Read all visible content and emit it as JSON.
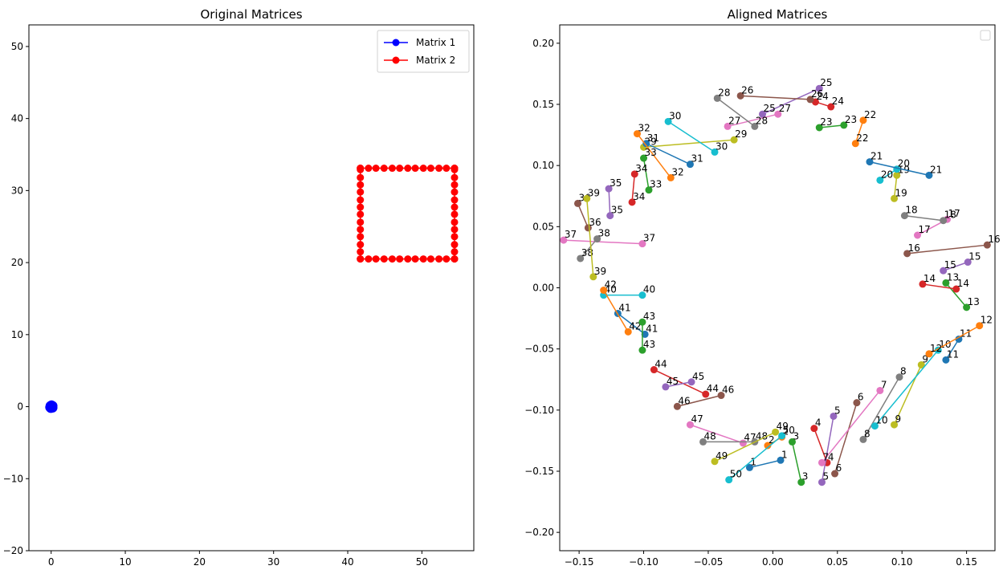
{
  "chart_data": [
    {
      "type": "line",
      "title": "Original Matrices",
      "xlabel": "",
      "ylabel": "",
      "xlim": [
        -3,
        57
      ],
      "ylim": [
        -20,
        53
      ],
      "xticks": [
        0,
        10,
        20,
        30,
        40,
        50
      ],
      "yticks": [
        -20,
        -10,
        0,
        10,
        20,
        30,
        40,
        50
      ],
      "legend": "top-right",
      "series": [
        {
          "name": "Matrix 1",
          "color": "#0000ff",
          "style": "line-with-circle-markers",
          "points": [
            [
              0,
              0
            ],
            [
              0.1,
              0.05
            ],
            [
              0.2,
              0.1
            ],
            [
              0.1,
              -0.1
            ],
            [
              -0.1,
              0.1
            ],
            [
              0.15,
              -0.05
            ],
            [
              -0.15,
              -0.1
            ],
            [
              0.05,
              0.2
            ],
            [
              -0.05,
              -0.2
            ],
            [
              0.2,
              -0.15
            ]
          ]
        },
        {
          "name": "Matrix 2",
          "color": "#ff0000",
          "style": "line-with-circle-markers",
          "bottom_edge_x": [
            41.7,
            42.8,
            43.8,
            44.9,
            46.0,
            47.0,
            48.1,
            49.1,
            50.2,
            51.2,
            52.3,
            53.3,
            54.4
          ],
          "top_edge_x": [
            41.7,
            42.8,
            43.8,
            44.9,
            46.0,
            47.0,
            48.1,
            49.1,
            50.2,
            51.2,
            52.3,
            53.3,
            54.4
          ],
          "left_edge_y": [
            20.5,
            21.5,
            22.5,
            23.6,
            24.6,
            25.6,
            26.7,
            27.7,
            28.7,
            29.8,
            30.8,
            31.8,
            32.9,
            33.1
          ],
          "right_edge_y": [
            20.5,
            21.5,
            22.5,
            23.6,
            24.6,
            25.6,
            26.7,
            27.7,
            28.7,
            29.8,
            30.8,
            31.8,
            32.9,
            33.1
          ],
          "bottom_y": 20.5,
          "top_y": 33.1,
          "left_x": 41.7,
          "right_x": 54.4
        }
      ]
    },
    {
      "type": "scatter",
      "title": "Aligned Matrices",
      "xlabel": "",
      "ylabel": "",
      "xlim": [
        -0.165,
        0.172
      ],
      "ylim": [
        -0.215,
        0.215
      ],
      "xticks": [
        -0.15,
        -0.1,
        -0.05,
        0.0,
        0.05,
        0.1,
        0.15
      ],
      "yticks": [
        -0.2,
        -0.15,
        -0.1,
        -0.05,
        0.0,
        0.05,
        0.1,
        0.15,
        0.2
      ],
      "xtick_labels": [
        "−0.15",
        "−0.10",
        "−0.05",
        "0.00",
        "0.05",
        "0.10",
        "0.15"
      ],
      "ytick_labels": [
        "−0.20",
        "−0.15",
        "−0.10",
        "−0.05",
        "0.00",
        "0.05",
        "0.10",
        "0.15",
        "0.20"
      ],
      "legend": "top-right-empty",
      "palette": [
        "#1f77b4",
        "#ff7f0e",
        "#2ca02c",
        "#d62728",
        "#9467bd",
        "#8c564b",
        "#e377c2",
        "#7f7f7f",
        "#bcbd22",
        "#17becf"
      ],
      "pairs": [
        {
          "id": 1,
          "a": [
            0.006,
            -0.141
          ],
          "b": [
            -0.018,
            -0.147
          ]
        },
        {
          "id": 2,
          "a": [
            0.007,
            -0.122
          ],
          "b": [
            -0.004,
            -0.129
          ]
        },
        {
          "id": 3,
          "a": [
            0.015,
            -0.126
          ],
          "b": [
            0.022,
            -0.159
          ]
        },
        {
          "id": 4,
          "a": [
            0.042,
            -0.143
          ],
          "b": [
            0.032,
            -0.115
          ]
        },
        {
          "id": 5,
          "a": [
            0.047,
            -0.105
          ],
          "b": [
            0.038,
            -0.159
          ]
        },
        {
          "id": 6,
          "a": [
            0.065,
            -0.094
          ],
          "b": [
            0.048,
            -0.152
          ]
        },
        {
          "id": 7,
          "a": [
            0.083,
            -0.084
          ],
          "b": [
            0.038,
            -0.143
          ]
        },
        {
          "id": 8,
          "a": [
            0.098,
            -0.073
          ],
          "b": [
            0.07,
            -0.124
          ]
        },
        {
          "id": 9,
          "a": [
            0.115,
            -0.063
          ],
          "b": [
            0.094,
            -0.112
          ]
        },
        {
          "id": 10,
          "a": [
            0.128,
            -0.051
          ],
          "b": [
            0.079,
            -0.113
          ]
        },
        {
          "id": 11,
          "a": [
            0.134,
            -0.059
          ],
          "b": [
            0.144,
            -0.042
          ]
        },
        {
          "id": 12,
          "a": [
            0.16,
            -0.031
          ],
          "b": [
            0.121,
            -0.054
          ]
        },
        {
          "id": 13,
          "a": [
            0.15,
            -0.016
          ],
          "b": [
            0.134,
            0.004
          ]
        },
        {
          "id": 14,
          "a": [
            0.116,
            0.003
          ],
          "b": [
            0.142,
            -0.001
          ]
        },
        {
          "id": 15,
          "a": [
            0.151,
            0.021
          ],
          "b": [
            0.132,
            0.014
          ]
        },
        {
          "id": 16,
          "a": [
            0.166,
            0.035
          ],
          "b": [
            0.104,
            0.028
          ]
        },
        {
          "id": 17,
          "a": [
            0.135,
            0.056
          ],
          "b": [
            0.112,
            0.043
          ]
        },
        {
          "id": 18,
          "a": [
            0.132,
            0.055
          ],
          "b": [
            0.102,
            0.059
          ]
        },
        {
          "id": 19,
          "a": [
            0.096,
            0.092
          ],
          "b": [
            0.094,
            0.073
          ]
        },
        {
          "id": 20,
          "a": [
            0.096,
            0.097
          ],
          "b": [
            0.083,
            0.088
          ]
        },
        {
          "id": 21,
          "a": [
            0.121,
            0.092
          ],
          "b": [
            0.075,
            0.103
          ]
        },
        {
          "id": 22,
          "a": [
            0.07,
            0.137
          ],
          "b": [
            0.064,
            0.118
          ]
        },
        {
          "id": 23,
          "a": [
            0.055,
            0.133
          ],
          "b": [
            0.036,
            0.131
          ]
        },
        {
          "id": 24,
          "a": [
            0.045,
            0.148
          ],
          "b": [
            0.033,
            0.152
          ]
        },
        {
          "id": 25,
          "a": [
            0.036,
            0.163
          ],
          "b": [
            -0.008,
            0.142
          ]
        },
        {
          "id": 26,
          "a": [
            -0.025,
            0.157
          ],
          "b": [
            0.029,
            0.154
          ]
        },
        {
          "id": 27,
          "a": [
            0.004,
            0.142
          ],
          "b": [
            -0.035,
            0.132
          ]
        },
        {
          "id": 28,
          "a": [
            -0.014,
            0.132
          ],
          "b": [
            -0.043,
            0.155
          ]
        },
        {
          "id": 29,
          "a": [
            -0.03,
            0.121
          ],
          "b": [
            -0.1,
            0.115
          ]
        },
        {
          "id": 30,
          "a": [
            -0.045,
            0.111
          ],
          "b": [
            -0.081,
            0.136
          ]
        },
        {
          "id": 31,
          "a": [
            -0.064,
            0.101
          ],
          "b": [
            -0.098,
            0.118
          ]
        },
        {
          "id": 32,
          "a": [
            -0.079,
            0.09
          ],
          "b": [
            -0.105,
            0.126
          ]
        },
        {
          "id": 33,
          "a": [
            -0.096,
            0.08
          ],
          "b": [
            -0.1,
            0.106
          ]
        },
        {
          "id": 34,
          "a": [
            -0.109,
            0.07
          ],
          "b": [
            -0.107,
            0.093
          ]
        },
        {
          "id": 35,
          "a": [
            -0.126,
            0.059
          ],
          "b": [
            -0.127,
            0.081
          ]
        },
        {
          "id": 36,
          "a": [
            -0.143,
            0.049
          ],
          "b": [
            -0.151,
            0.069
          ]
        },
        {
          "id": 37,
          "a": [
            -0.101,
            0.036
          ],
          "b": [
            -0.162,
            0.039
          ]
        },
        {
          "id": 38,
          "a": [
            -0.136,
            0.04
          ],
          "b": [
            -0.149,
            0.024
          ]
        },
        {
          "id": 39,
          "a": [
            -0.139,
            0.009
          ],
          "b": [
            -0.144,
            0.073
          ]
        },
        {
          "id": 40,
          "a": [
            -0.101,
            -0.006
          ],
          "b": [
            -0.131,
            -0.006
          ]
        },
        {
          "id": 41,
          "a": [
            -0.099,
            -0.038
          ],
          "b": [
            -0.12,
            -0.021
          ]
        },
        {
          "id": 42,
          "a": [
            -0.131,
            -0.002
          ],
          "b": [
            -0.112,
            -0.036
          ]
        },
        {
          "id": 43,
          "a": [
            -0.101,
            -0.028
          ],
          "b": [
            -0.101,
            -0.051
          ]
        },
        {
          "id": 44,
          "a": [
            -0.052,
            -0.087
          ],
          "b": [
            -0.092,
            -0.067
          ]
        },
        {
          "id": 45,
          "a": [
            -0.063,
            -0.077
          ],
          "b": [
            -0.083,
            -0.081
          ]
        },
        {
          "id": 46,
          "a": [
            -0.04,
            -0.088
          ],
          "b": [
            -0.074,
            -0.097
          ]
        },
        {
          "id": 47,
          "a": [
            -0.064,
            -0.112
          ],
          "b": [
            -0.023,
            -0.127
          ]
        },
        {
          "id": 48,
          "a": [
            -0.014,
            -0.126
          ],
          "b": [
            -0.054,
            -0.126
          ]
        },
        {
          "id": 49,
          "a": [
            0.002,
            -0.118
          ],
          "b": [
            -0.045,
            -0.142
          ]
        },
        {
          "id": 50,
          "a": [
            0.007,
            -0.121
          ],
          "b": [
            -0.034,
            -0.157
          ]
        }
      ]
    }
  ]
}
